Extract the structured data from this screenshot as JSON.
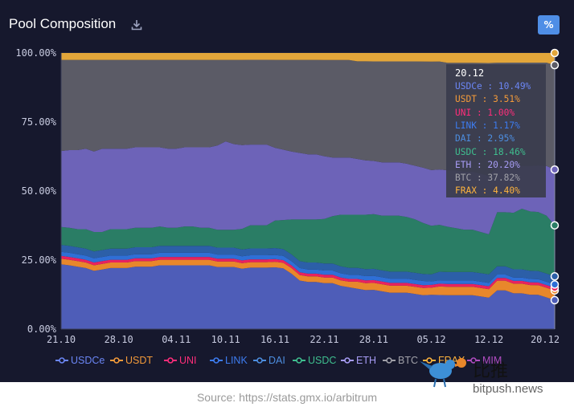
{
  "header": {
    "title": "Pool Composition",
    "percent_toggle": "%"
  },
  "icons": {
    "download": "download-icon",
    "bird_logo": "bird-logo-icon"
  },
  "chart_data": {
    "type": "area",
    "stacked": true,
    "x": [
      "21.10",
      "22.10",
      "23.10",
      "24.10",
      "25.10",
      "26.10",
      "27.10",
      "28.10",
      "29.10",
      "30.10",
      "31.10",
      "01.11",
      "02.11",
      "03.11",
      "04.11",
      "05.11",
      "06.11",
      "07.11",
      "08.11",
      "09.11",
      "10.11",
      "11.11",
      "12.11",
      "13.11",
      "14.11",
      "15.11",
      "16.11",
      "17.11",
      "18.11",
      "19.11",
      "20.11",
      "21.11",
      "22.11",
      "23.11",
      "24.11",
      "25.11",
      "26.11",
      "27.11",
      "28.11",
      "29.11",
      "30.11",
      "01.12",
      "02.12",
      "03.12",
      "04.12",
      "05.12",
      "06.12",
      "07.12",
      "08.12",
      "09.12",
      "10.12",
      "11.12",
      "12.12",
      "13.12",
      "14.12",
      "15.12",
      "16.12",
      "17.12",
      "18.12",
      "19.12",
      "20.12"
    ],
    "x_ticks": [
      "21.10",
      "28.10",
      "04.11",
      "10.11",
      "16.11",
      "22.11",
      "28.11",
      "05.12",
      "12.12",
      "20.12"
    ],
    "y_ticks": [
      "0.00%",
      "25.00%",
      "50.00%",
      "75.00%",
      "100.00%"
    ],
    "ylim": [
      0,
      100
    ],
    "y_unit": "%",
    "grid": "horizontal",
    "legend_position": "bottom",
    "series": [
      {
        "name": "USDCe",
        "color": "#4e5db8",
        "values": [
          23.5,
          23.0,
          22.5,
          22.0,
          21.0,
          21.5,
          22.0,
          22.0,
          22.0,
          22.5,
          22.5,
          22.5,
          23.0,
          23.0,
          23.0,
          23.0,
          23.0,
          23.0,
          23.0,
          22.5,
          22.5,
          22.5,
          22.0,
          22.5,
          22.5,
          22.5,
          22.5,
          22.0,
          20.0,
          17.5,
          17.0,
          17.0,
          16.5,
          16.5,
          15.5,
          15.0,
          14.5,
          14.0,
          14.0,
          13.5,
          13.0,
          13.0,
          13.0,
          12.5,
          12.0,
          12.0,
          12.0,
          12.0,
          12.0,
          12.0,
          12.0,
          11.5,
          11.0,
          14.0,
          14.0,
          13.0,
          13.0,
          12.5,
          12.5,
          11.5,
          10.49
        ]
      },
      {
        "name": "USDT",
        "color": "#e8872b",
        "values": [
          2.0,
          2.0,
          2.0,
          2.0,
          2.0,
          2.0,
          2.0,
          2.0,
          2.0,
          2.0,
          2.0,
          2.0,
          2.0,
          2.0,
          2.0,
          2.0,
          2.0,
          2.0,
          2.0,
          2.0,
          2.0,
          2.0,
          2.0,
          2.0,
          2.0,
          2.0,
          2.0,
          2.0,
          2.0,
          2.0,
          2.0,
          2.0,
          2.0,
          2.0,
          2.0,
          2.0,
          2.5,
          2.5,
          2.5,
          2.5,
          2.5,
          2.5,
          2.5,
          2.5,
          2.5,
          2.5,
          3.0,
          3.0,
          3.0,
          3.0,
          3.0,
          3.0,
          3.0,
          3.5,
          3.5,
          3.5,
          3.5,
          3.5,
          3.5,
          3.5,
          3.51
        ]
      },
      {
        "name": "UNI",
        "color": "#e8225f",
        "values": [
          1.0,
          1.0,
          1.0,
          1.0,
          1.0,
          1.0,
          1.0,
          1.0,
          1.0,
          1.0,
          1.0,
          1.0,
          1.0,
          1.0,
          1.0,
          1.0,
          1.0,
          1.0,
          1.0,
          1.0,
          1.0,
          1.0,
          1.0,
          1.0,
          1.0,
          1.0,
          1.0,
          1.0,
          1.0,
          1.0,
          1.0,
          1.0,
          1.0,
          1.0,
          1.0,
          1.0,
          1.0,
          1.0,
          1.0,
          1.0,
          1.0,
          1.0,
          1.0,
          1.0,
          1.0,
          1.0,
          1.0,
          1.0,
          1.0,
          1.0,
          1.0,
          1.0,
          1.0,
          1.0,
          1.0,
          1.0,
          1.0,
          1.0,
          1.0,
          1.0,
          1.0
        ]
      },
      {
        "name": "LINK",
        "color": "#2f6fd6",
        "values": [
          1.5,
          1.5,
          1.5,
          1.5,
          1.5,
          1.5,
          1.5,
          1.5,
          1.5,
          1.5,
          1.5,
          1.5,
          1.5,
          1.5,
          1.5,
          1.5,
          1.5,
          1.5,
          1.5,
          1.5,
          1.5,
          1.5,
          1.5,
          1.5,
          1.5,
          1.5,
          1.5,
          1.5,
          1.5,
          1.5,
          1.5,
          1.5,
          1.5,
          1.5,
          1.5,
          1.5,
          1.5,
          1.5,
          1.5,
          1.5,
          1.5,
          1.5,
          1.5,
          1.5,
          1.5,
          1.2,
          1.2,
          1.2,
          1.2,
          1.2,
          1.2,
          1.2,
          1.2,
          1.2,
          1.2,
          1.2,
          1.2,
          1.2,
          1.2,
          1.2,
          1.17
        ]
      },
      {
        "name": "DAI",
        "color": "#2c5fa8",
        "values": [
          2.5,
          2.5,
          2.5,
          2.5,
          2.5,
          2.5,
          2.5,
          2.5,
          2.5,
          2.5,
          2.5,
          2.5,
          2.5,
          2.5,
          2.5,
          2.5,
          2.5,
          2.5,
          2.5,
          2.5,
          2.5,
          2.5,
          2.5,
          2.5,
          2.5,
          2.5,
          2.5,
          2.5,
          2.5,
          2.5,
          2.5,
          2.5,
          2.5,
          2.5,
          2.5,
          2.5,
          2.5,
          2.5,
          2.5,
          2.5,
          2.5,
          2.5,
          2.5,
          2.5,
          2.5,
          2.5,
          3.0,
          3.0,
          3.0,
          3.0,
          3.0,
          3.0,
          3.0,
          3.0,
          3.0,
          3.0,
          3.0,
          3.0,
          3.0,
          3.0,
          2.95
        ]
      },
      {
        "name": "USDC",
        "color": "#2a7d65",
        "values": [
          6.5,
          6.5,
          6.5,
          7.0,
          7.0,
          6.5,
          7.0,
          7.0,
          7.0,
          7.0,
          7.0,
          7.0,
          7.0,
          6.5,
          6.5,
          7.0,
          7.0,
          6.5,
          6.5,
          6.5,
          6.5,
          6.5,
          7.5,
          8.5,
          8.5,
          8.5,
          10.0,
          10.5,
          12.5,
          15.0,
          15.5,
          15.5,
          16.0,
          17.0,
          18.5,
          19.0,
          19.0,
          19.5,
          19.5,
          19.5,
          20.0,
          20.0,
          19.5,
          19.0,
          18.0,
          17.0,
          16.5,
          16.0,
          15.5,
          15.0,
          15.0,
          14.5,
          14.0,
          19.5,
          19.5,
          20.5,
          22.0,
          21.5,
          21.5,
          21.0,
          18.46
        ]
      },
      {
        "name": "ETH",
        "color": "#6d63b8",
        "values": [
          27.5,
          28.0,
          28.5,
          29.0,
          29.0,
          30.0,
          29.0,
          29.0,
          29.0,
          29.0,
          29.0,
          29.0,
          28.5,
          28.5,
          28.5,
          28.5,
          28.5,
          29.0,
          29.0,
          30.5,
          32.0,
          31.0,
          30.5,
          29.5,
          29.5,
          29.5,
          26.5,
          25.5,
          24.5,
          24.0,
          23.5,
          23.5,
          22.5,
          21.0,
          20.5,
          20.5,
          20.0,
          19.5,
          19.0,
          19.0,
          19.0,
          19.0,
          19.0,
          19.0,
          19.5,
          19.5,
          19.5,
          20.0,
          20.5,
          20.5,
          20.5,
          20.5,
          20.5,
          16.5,
          16.5,
          17.0,
          15.5,
          16.5,
          17.0,
          18.0,
          20.2
        ]
      },
      {
        "name": "BTC",
        "color": "#5b5b66",
        "values": [
          33.0,
          32.5,
          32.5,
          32.0,
          33.0,
          32.0,
          32.0,
          32.0,
          32.0,
          31.5,
          31.5,
          31.5,
          31.5,
          32.0,
          32.0,
          31.5,
          31.5,
          31.5,
          31.5,
          31.0,
          29.5,
          30.5,
          31.0,
          31.0,
          31.0,
          31.0,
          32.0,
          32.5,
          33.0,
          33.5,
          34.0,
          34.0,
          34.5,
          35.0,
          35.0,
          35.0,
          35.0,
          35.5,
          35.5,
          36.0,
          36.0,
          36.0,
          36.5,
          37.0,
          37.5,
          38.0,
          38.0,
          38.0,
          38.0,
          38.5,
          38.5,
          39.0,
          39.5,
          37.5,
          37.5,
          37.5,
          37.5,
          37.5,
          37.5,
          37.5,
          37.82
        ]
      },
      {
        "name": "FRAX",
        "color": "#e3a63a",
        "values": [
          2.5,
          2.5,
          2.5,
          2.5,
          2.5,
          2.5,
          2.5,
          2.5,
          2.5,
          2.5,
          2.5,
          2.5,
          2.5,
          2.5,
          2.5,
          2.5,
          2.5,
          2.5,
          2.5,
          2.5,
          2.5,
          2.5,
          2.5,
          2.5,
          2.5,
          2.5,
          2.5,
          2.5,
          2.5,
          2.5,
          2.5,
          2.5,
          2.5,
          2.5,
          2.5,
          2.5,
          3.0,
          3.0,
          3.0,
          3.0,
          3.0,
          3.0,
          3.0,
          3.0,
          3.0,
          3.0,
          3.0,
          3.5,
          3.5,
          3.5,
          3.5,
          3.5,
          3.5,
          3.5,
          3.5,
          3.5,
          3.5,
          3.5,
          3.5,
          3.5,
          4.4
        ]
      }
    ],
    "extra_legend_item": {
      "name": "MIM",
      "color": "#b04cc0"
    },
    "tooltip": {
      "date": "20.12",
      "rows": [
        {
          "name": "USDCe",
          "value": "10.49%",
          "color": "#6b86f5"
        },
        {
          "name": "USDT",
          "value": "3.51%",
          "color": "#f39a3a"
        },
        {
          "name": "UNI",
          "value": "1.00%",
          "color": "#ff2d7a"
        },
        {
          "name": "LINK",
          "value": "1.17%",
          "color": "#3d7cf0"
        },
        {
          "name": "DAI",
          "value": "2.95%",
          "color": "#4d8ee0"
        },
        {
          "name": "USDC",
          "value": "18.46%",
          "color": "#3fbf8f"
        },
        {
          "name": "ETH",
          "value": "20.20%",
          "color": "#a79cf5"
        },
        {
          "name": "BTC",
          "value": "37.82%",
          "color": "#a0a0a8"
        },
        {
          "name": "FRAX",
          "value": "4.40%",
          "color": "#ffb43d"
        }
      ]
    }
  },
  "legend": {
    "items": [
      {
        "label": "USDCe",
        "color": "#6b86f5"
      },
      {
        "label": "USDT",
        "color": "#f39a3a"
      },
      {
        "label": "UNI",
        "color": "#ff2d7a"
      },
      {
        "label": "LINK",
        "color": "#3d7cf0"
      },
      {
        "label": "DAI",
        "color": "#4d8ee0"
      },
      {
        "label": "USDC",
        "color": "#3fbf8f"
      },
      {
        "label": "ETH",
        "color": "#a79cf5"
      },
      {
        "label": "BTC",
        "color": "#a0a0a8"
      },
      {
        "label": "FRAX",
        "color": "#ffb43d"
      },
      {
        "label": "MIM",
        "color": "#b04cc0"
      }
    ]
  },
  "watermark": {
    "cn": "比推",
    "en": "bitpush.news"
  },
  "source": "Source: https://stats.gmx.io/arbitrum"
}
